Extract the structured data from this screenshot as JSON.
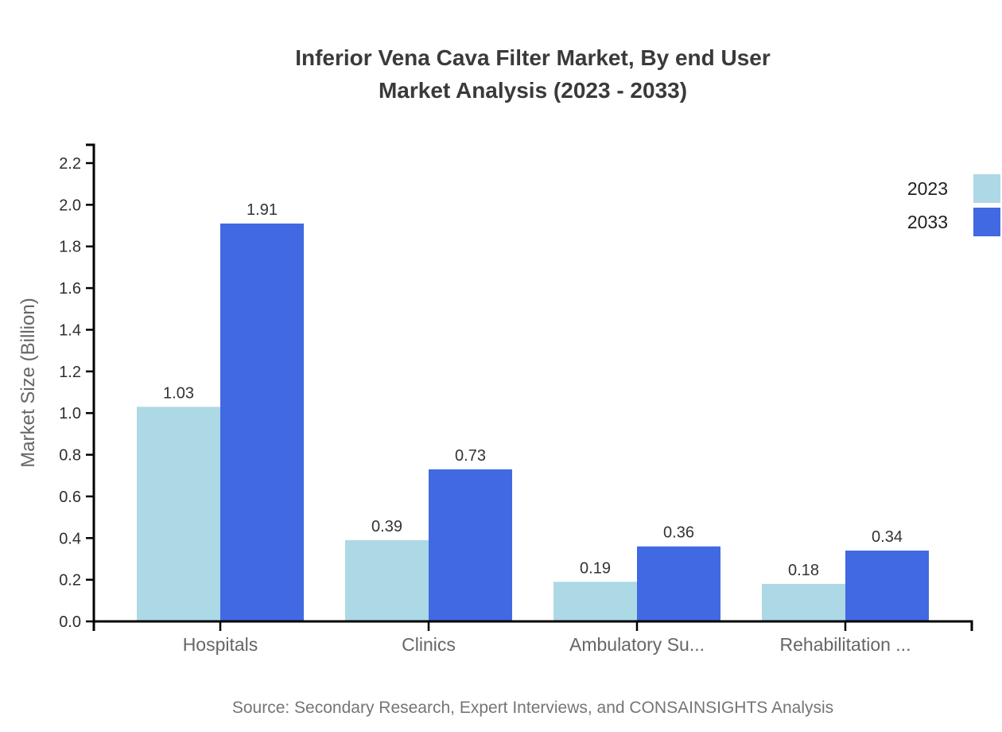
{
  "title": {
    "line1": "Inferior Vena Cava Filter Market, By end User",
    "line2": "Market Analysis (2023 - 2033)"
  },
  "source": "Source: Secondary Research, Expert Interviews, and CONSAINSIGHTS Analysis",
  "legend": [
    {
      "label": "2023",
      "color": "#ADD8E6"
    },
    {
      "label": "2033",
      "color": "#4169E1"
    }
  ],
  "colors": {
    "series_2023": "#ADD8E6",
    "series_2033": "#4169E1",
    "axis": "#000000",
    "title_text": "#3a3a3a",
    "category_text": "#666666",
    "value_text": "#333333",
    "source_text": "#757575",
    "background": "#ffffff"
  },
  "chart_data": {
    "type": "bar",
    "title": "Inferior Vena Cava Filter Market, By end User Market Analysis (2023 - 2033)",
    "categories": [
      "Hospitals",
      "Clinics",
      "Ambulatory Su...",
      "Rehabilitation ..."
    ],
    "series": [
      {
        "name": "2023",
        "color": "#ADD8E6",
        "values": [
          1.03,
          0.39,
          0.19,
          0.18
        ]
      },
      {
        "name": "2033",
        "color": "#4169E1",
        "values": [
          1.91,
          0.73,
          0.36,
          0.34
        ]
      }
    ],
    "xlabel": "",
    "ylabel": "Market Size (Billion)",
    "ylim": [
      0,
      2.2
    ],
    "ytick_step": 0.2,
    "grid": false,
    "legend_position": "top-right",
    "value_labels": true
  }
}
